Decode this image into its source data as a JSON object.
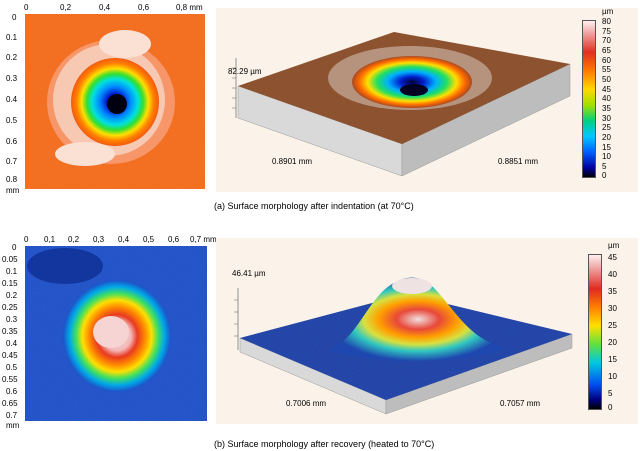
{
  "panel_a": {
    "map_x_ticks": [
      "0",
      "0,2",
      "0,4",
      "0,6",
      "0,8 mm"
    ],
    "map_y_ticks": [
      "0",
      "0.1",
      "0.2",
      "0.3",
      "0.4",
      "0.5",
      "0.6",
      "0.7",
      "0.8"
    ],
    "map_y_unit": "mm",
    "height_label": "82.29 µm",
    "dim_left": "0.8901 mm",
    "dim_right": "0.8851 mm",
    "colorbar_unit": "µm",
    "colorbar_ticks": [
      "80",
      "75",
      "70",
      "65",
      "60",
      "55",
      "50",
      "45",
      "40",
      "35",
      "30",
      "25",
      "20",
      "15",
      "10",
      "5",
      "0"
    ],
    "caption": "(a) Surface morphology after indentation   (at 70°C)",
    "colors": {
      "background": "#f26a1b",
      "ring": "#f7c9b3",
      "center": "#000080"
    }
  },
  "panel_b": {
    "map_x_ticks": [
      "0",
      "0,1",
      "0,2",
      "0,3",
      "0,4",
      "0,5",
      "0,6",
      "0,7 mm"
    ],
    "map_y_ticks": [
      "0",
      "0.05",
      "0.1",
      "0.15",
      "0.2",
      "0.25",
      "0.3",
      "0.35",
      "0.4",
      "0.45",
      "0.5",
      "0.55",
      "0.6",
      "0.65",
      "0.7"
    ],
    "map_y_unit": "mm",
    "height_label": "46.41 µm",
    "dim_left": "0.7006 mm",
    "dim_right": "0.7057 mm",
    "colorbar_unit": "µm",
    "colorbar_ticks": [
      "45",
      "40",
      "35",
      "30",
      "25",
      "20",
      "15",
      "10",
      "5",
      "0"
    ],
    "caption": "(b) Surface morphology after recovery   (heated to 70°C)",
    "colors": {
      "background": "#1e50c8",
      "peak": "#f3c8c8",
      "ring": "#ffd200"
    }
  }
}
